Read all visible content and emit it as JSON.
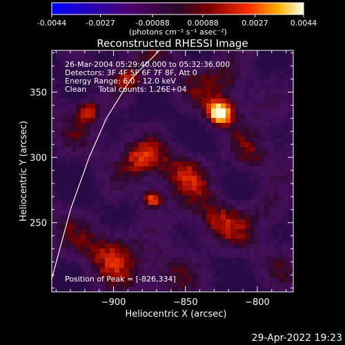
{
  "chart_data": {
    "type": "heatmap",
    "title": "Reconstructed RHESSI Image",
    "xlabel": "Heliocentric X (arcsec)",
    "ylabel": "Heliocentric Y (arcsec)",
    "xlim": [
      -943,
      -775
    ],
    "ylim": [
      197,
      382
    ],
    "x_ticks": [
      -900,
      -850,
      -800
    ],
    "y_ticks": [
      250,
      300,
      350
    ],
    "colorbar": {
      "range": [
        -0.0044,
        0.0044
      ],
      "tick_values": [
        -0.0044,
        -0.0027,
        -0.00088,
        0.00088,
        0.0027,
        0.0044
      ],
      "tick_labels": [
        "-0.0044",
        "-0.0027",
        "-0.00088",
        "0.00088",
        "0.0027",
        "0.0044"
      ],
      "unit_label": "(photons cm⁻² s⁻¹ asec⁻²)"
    },
    "info_lines": [
      "26-Mar-2004 05:29:40.000 to 05:32:36.000",
      "Detectors: 3F 4F 5F 6F 7F 8F, Att 0",
      "Energy Range: 6.0 - 12.0 keV",
      "Clean     Total counts: 1.26E+04"
    ],
    "peak_label": "Position of Peak = [-826,334]",
    "peak": [
      -826,
      334
    ],
    "sources": [
      {
        "x": -826,
        "y": 334,
        "sigma": 6,
        "amp": 1.0
      },
      {
        "x": -873,
        "y": 268,
        "sigma": 5,
        "amp": 0.62
      },
      {
        "x": -918,
        "y": 335,
        "sigma": 6,
        "amp": 0.5
      },
      {
        "x": -890,
        "y": 360,
        "sigma": 8,
        "amp": 0.45
      },
      {
        "x": -880,
        "y": 300,
        "sigma": 10,
        "amp": 0.4
      },
      {
        "x": -850,
        "y": 290,
        "sigma": 12,
        "amp": 0.35
      },
      {
        "x": -805,
        "y": 300,
        "sigma": 10,
        "amp": 0.3
      },
      {
        "x": -830,
        "y": 250,
        "sigma": 12,
        "amp": 0.3
      },
      {
        "x": -900,
        "y": 230,
        "sigma": 14,
        "amp": 0.35
      },
      {
        "x": -860,
        "y": 215,
        "sigma": 12,
        "amp": 0.3
      },
      {
        "x": -820,
        "y": 360,
        "sigma": 12,
        "amp": 0.3
      },
      {
        "x": -790,
        "y": 260,
        "sigma": 10,
        "amp": 0.25
      }
    ],
    "limb": [
      [
        -943,
        207
      ],
      [
        -930,
        260
      ],
      [
        -917,
        300
      ],
      [
        -905,
        330
      ],
      [
        -888,
        360
      ],
      [
        -868,
        382
      ]
    ]
  },
  "footer": {
    "date": "29-Apr-2022 19:23"
  }
}
